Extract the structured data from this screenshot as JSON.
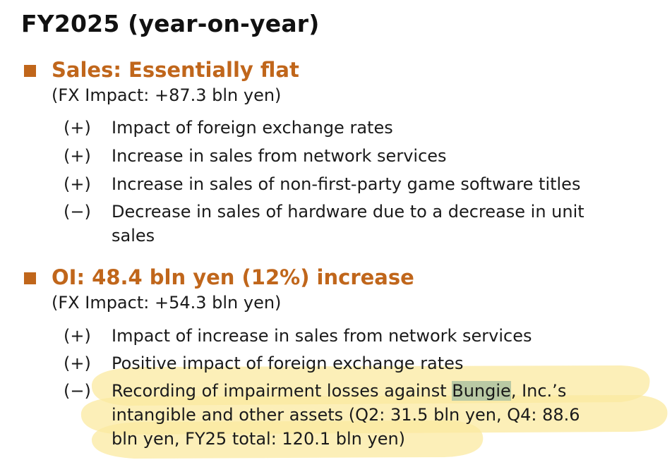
{
  "title": "FY2025 (year-on-year)",
  "sections": [
    {
      "heading": "Sales: Essentially flat",
      "fx_impact": "(FX Impact: +87.3 bln yen)",
      "items": [
        {
          "sign": "(+)",
          "text": "Impact of foreign exchange rates"
        },
        {
          "sign": "(+)",
          "text": "Increase in sales from network services"
        },
        {
          "sign": "(+)",
          "text": "Increase in sales of non-first-party game software titles"
        },
        {
          "sign": "(−)",
          "text": "Decrease in sales of hardware due to a decrease in unit sales"
        }
      ]
    },
    {
      "heading": "OI: 48.4 bln yen (12%) increase",
      "fx_impact": "(FX Impact: +54.3 bln yen)",
      "items": [
        {
          "sign": "(+)",
          "text": "Impact of increase in sales from network services"
        },
        {
          "sign": "(+)",
          "text": "Positive impact of foreign exchange rates"
        },
        {
          "sign": "(−)",
          "text_before": "Recording of impairment losses against ",
          "highlighted_word": "Bungie",
          "text_after": ", Inc.’s intangible and other assets (Q2: 31.5 bln yen, Q4: 88.6 bln yen, FY25 total: 120.1 bln yen)"
        }
      ]
    }
  ],
  "colors": {
    "heading_accent": "#c0661b",
    "marker_highlight": "#fbeaa0",
    "word_highlight": "#b9c9a4"
  }
}
